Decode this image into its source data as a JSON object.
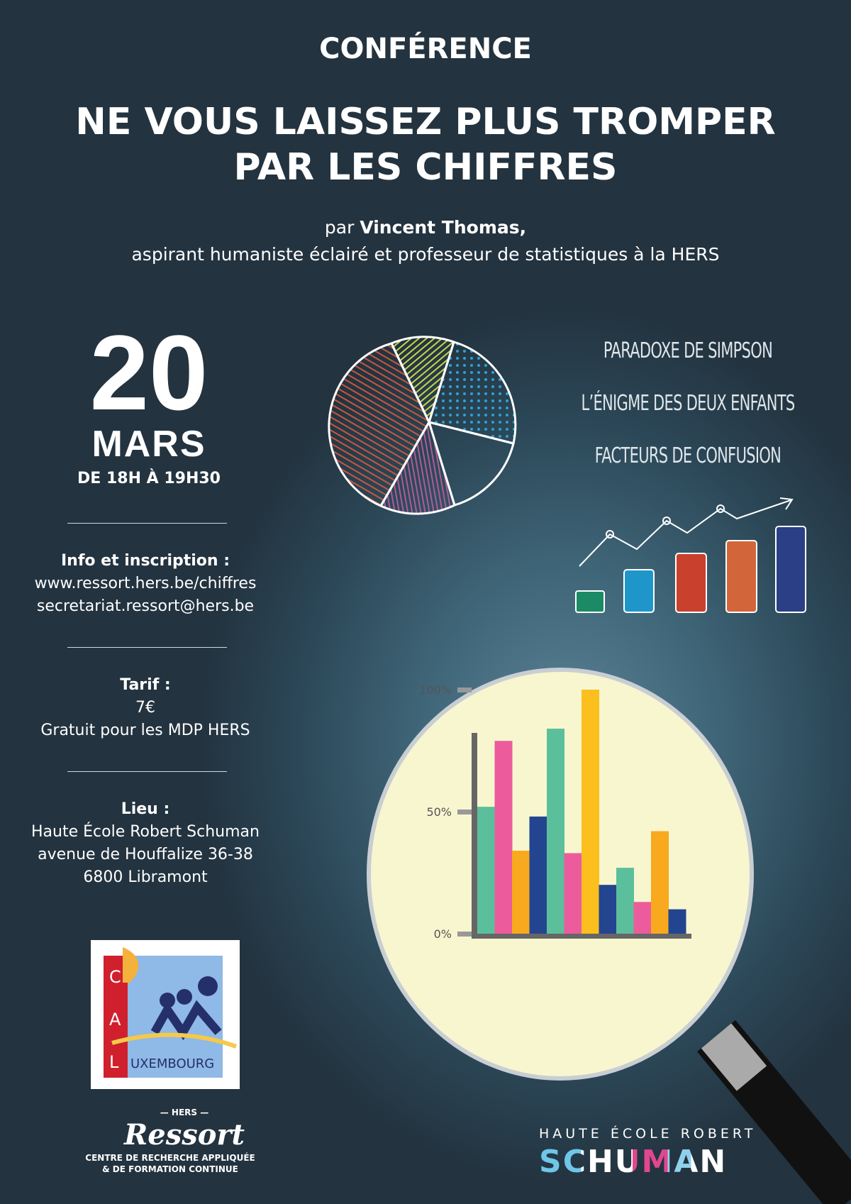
{
  "header": {
    "kicker": "CONFÉRENCE",
    "title_line1": "NE VOUS LAISSEZ PLUS TROMPER",
    "title_line2": "PAR LES CHIFFRES",
    "by_prefix": "par ",
    "speaker": "Vincent Thomas,",
    "speaker_role": "aspirant humaniste éclairé et professeur de statistiques à la HERS"
  },
  "event": {
    "day": "20",
    "month": "MARS",
    "time": "DE 18H À 19H30"
  },
  "info": {
    "label": "Info et inscription :",
    "website": "www.ressort.hers.be/chiffres",
    "email": "secretariat.ressort@hers.be"
  },
  "tarif": {
    "label": "Tarif :",
    "price": "7€",
    "note": "Gratuit pour les MDP HERS"
  },
  "lieu": {
    "label": "Lieu :",
    "line1": "Haute École Robert Schuman",
    "line2": "avenue de Houffalize 36-38",
    "line3": "6800 Libramont"
  },
  "topics": [
    "PARADOXE DE SIMPSON",
    "L’ÉNIGME DES DEUX ENFANTS",
    "FACTEURS DE CONFUSION"
  ],
  "logos": {
    "cal": "CAL LUXEMBOURG",
    "ressort_top": "— HERS —",
    "ressort": "Ressort",
    "ressort_sub1": "CENTRE DE RECHERCHE APPLIQUÉE",
    "ressort_sub2": "& DE FORMATION CONTINUE",
    "schuman_top": "HAUTE ÉCOLE ROBERT",
    "schuman": "SCHUMAN"
  },
  "chart_data": {
    "type": "bar",
    "ylim": [
      0,
      100
    ],
    "yticks": [
      "0%",
      "50%",
      "100%"
    ],
    "grid": false,
    "values": [
      52,
      79,
      34,
      48,
      84,
      33,
      100,
      20,
      27,
      13,
      42,
      10
    ],
    "colors": [
      "#5cbf9c",
      "#ec5c9c",
      "#f8a91e",
      "#23458f",
      "#5cbf9c",
      "#ec5c9c",
      "#fbbf1e",
      "#23458f",
      "#5cbf9c",
      "#ec5c9c",
      "#f8a91e",
      "#23458f"
    ]
  }
}
